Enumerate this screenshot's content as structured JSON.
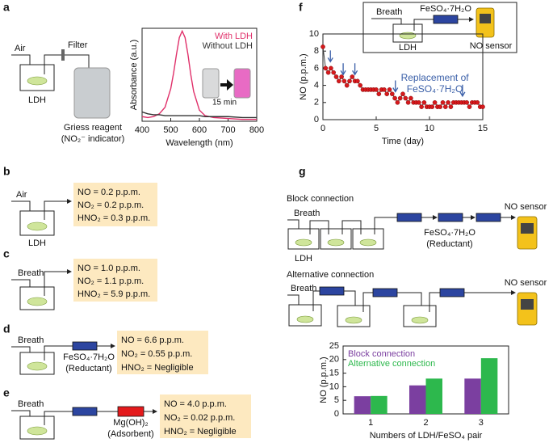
{
  "panels": {
    "a": {
      "label": "a",
      "air": "Air",
      "filter": "Filter",
      "ldh": "LDH",
      "reagent": "Griess reagent",
      "indicator": "(NO₂⁻ indicator)",
      "inset": "15 min"
    },
    "b": {
      "label": "b",
      "input": "Air",
      "ldh": "LDH",
      "results": [
        "NO = 0.2 p.p.m.",
        "NO₂ = 0.2 p.p.m.",
        "HNO₂ = 0.3 p.p.m."
      ]
    },
    "c": {
      "label": "c",
      "input": "Breath",
      "results": [
        "NO = 1.0 p.p.m.",
        "NO₂ = 1.1 p.p.m.",
        "HNO₂ = 5.9 p.p.m."
      ]
    },
    "d": {
      "label": "d",
      "input": "Breath",
      "reductant": "FeSO₄·7H₂O",
      "reductant_note": "(Reductant)",
      "results": [
        "NO = 6.6 p.p.m.",
        "NO₂ = 0.55 p.p.m.",
        "HNO₂ = Negligible"
      ]
    },
    "e": {
      "label": "e",
      "input": "Breath",
      "adsorbent": "Mg(OH)₂",
      "adsorbent_note": "(Adsorbent)",
      "results": [
        "NO = 4.0 p.p.m.",
        "NO₂ = 0.02 p.p.m.",
        "HNO₂ = Negligible"
      ]
    },
    "f": {
      "label": "f",
      "inset_breath": "Breath",
      "inset_reductant": "FeSO₄·7H₂O",
      "inset_ldh": "LDH",
      "inset_sensor": "NO sensor"
    },
    "g": {
      "label": "g",
      "block": "Block connection",
      "block_breath": "Breath",
      "block_ldh": "LDH",
      "block_reductant": "FeSO₄·7H₂O",
      "block_note": "(Reductant)",
      "block_sensor": "NO sensor",
      "alt": "Alternative connection",
      "alt_breath": "Breath",
      "alt_sensor": "NO sensor"
    }
  },
  "chart_data": [
    {
      "type": "line",
      "xlabel": "Wavelength (nm)",
      "ylabel": "Absorbance (a.u.)",
      "x": [
        400,
        420,
        440,
        460,
        480,
        500,
        510,
        520,
        530,
        540,
        550,
        560,
        570,
        580,
        600,
        620,
        650,
        700,
        750,
        800
      ],
      "series": [
        {
          "name": "With LDH",
          "color": "#e0306a",
          "values": [
            0.05,
            0.04,
            0.05,
            0.08,
            0.15,
            0.35,
            0.52,
            0.72,
            0.9,
            0.97,
            0.9,
            0.72,
            0.5,
            0.32,
            0.12,
            0.06,
            0.04,
            0.03,
            0.02,
            0.02
          ]
        },
        {
          "name": "Without LDH",
          "color": "#333333",
          "values": [
            0.1,
            0.08,
            0.07,
            0.07,
            0.06,
            0.06,
            0.06,
            0.06,
            0.06,
            0.06,
            0.06,
            0.06,
            0.06,
            0.06,
            0.06,
            0.05,
            0.05,
            0.05,
            0.04,
            0.04
          ]
        }
      ],
      "xlim": [
        400,
        800
      ],
      "xticks": [
        400,
        500,
        600,
        700,
        800
      ],
      "ylim": [
        0,
        1
      ],
      "legend": "upper right"
    },
    {
      "type": "line",
      "xlabel": "Time (day)",
      "ylabel": "NO (p.p.m.)",
      "markers": true,
      "line_color": "#444444",
      "annotation": [
        "Replacement of",
        "FeSO₄·7H₂O"
      ],
      "annotation_color": "#3a5fa8",
      "annotation_x": [
        0.7,
        1.9,
        3,
        6.8,
        13.1
      ],
      "x": [
        0,
        0.25,
        0.5,
        0.75,
        1,
        1.25,
        1.5,
        1.75,
        2,
        2.25,
        2.5,
        2.75,
        3,
        3.25,
        3.5,
        3.75,
        4,
        4.25,
        4.5,
        4.75,
        5,
        5.25,
        5.5,
        5.75,
        6,
        6.25,
        6.5,
        6.75,
        7,
        7.25,
        7.5,
        7.75,
        8,
        8.25,
        8.5,
        8.75,
        9,
        9.25,
        9.5,
        9.75,
        10,
        10.25,
        10.5,
        10.75,
        11,
        11.25,
        11.5,
        11.75,
        12,
        12.25,
        12.5,
        12.75,
        13,
        13.25,
        13.5,
        13.75,
        14,
        14.25,
        14.5,
        14.75,
        15
      ],
      "series": [
        {
          "name": "NO",
          "color": "#d7191c",
          "values": [
            8.5,
            6,
            5.5,
            6,
            5.5,
            5,
            4.5,
            5,
            4.5,
            4,
            4.5,
            5,
            4.5,
            4.5,
            4,
            3.5,
            3.5,
            3.5,
            3.5,
            3.5,
            3.5,
            3,
            3.5,
            3.5,
            3,
            3.5,
            3,
            2.5,
            2,
            2.5,
            3,
            2.5,
            2,
            2.5,
            2,
            2,
            2,
            1.5,
            2,
            1.5,
            1.5,
            1.5,
            2,
            1.5,
            1.5,
            2,
            1.5,
            2,
            1.5,
            2,
            2,
            2,
            2,
            2,
            2,
            1.5,
            2,
            2,
            2,
            1.5,
            1.5
          ]
        }
      ],
      "xlim": [
        0,
        15
      ],
      "xticks": [
        0,
        5,
        10,
        15
      ],
      "ylim": [
        0,
        10
      ],
      "yticks": [
        0,
        2,
        4,
        6,
        8,
        10
      ]
    },
    {
      "type": "bar",
      "xlabel": "Numbers of LDH/FeSO₄ pair",
      "ylabel": "NO (p.p.m.)",
      "categories": [
        "1",
        "2",
        "3"
      ],
      "series": [
        {
          "name": "Block connection",
          "color": "#7b3fa0",
          "values": [
            6.5,
            10.5,
            13
          ]
        },
        {
          "name": "Alternative connection",
          "color": "#2db84d",
          "values": [
            6.6,
            13,
            20.5
          ]
        }
      ],
      "ylim": [
        0,
        25
      ],
      "yticks": [
        0,
        5,
        10,
        15,
        20,
        25
      ],
      "legend": "upper left"
    }
  ]
}
